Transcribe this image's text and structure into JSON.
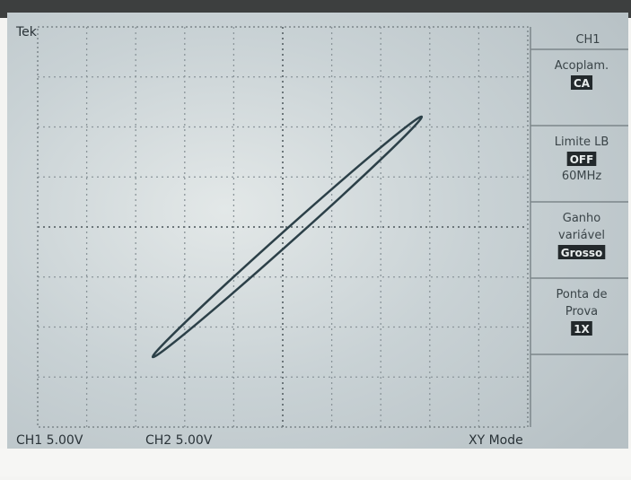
{
  "header": {
    "brand": "Tek"
  },
  "menu": {
    "title": "CH1",
    "items": [
      {
        "label": [
          "Acoplam."
        ],
        "value": "CA"
      },
      {
        "label": [
          "Limite LB"
        ],
        "value": "OFF",
        "extra": "60MHz"
      },
      {
        "label": [
          "Ganho",
          "variável"
        ],
        "value": "Grosso"
      },
      {
        "label": [
          "Ponta de",
          "Prova"
        ],
        "value": "1X"
      }
    ]
  },
  "footer": {
    "ch1": "CH1 5.00V",
    "ch2": "CH2 5.00V",
    "mode": "XY Mode"
  }
}
